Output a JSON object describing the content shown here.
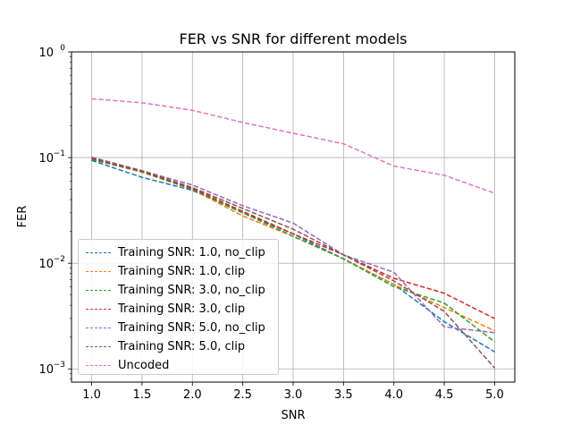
{
  "chart_data": {
    "type": "line",
    "title": "FER vs SNR for different models",
    "xlabel": "SNR",
    "ylabel": "FER",
    "yscale": "log",
    "xlim": [
      0.8,
      5.2
    ],
    "ylim": [
      0.00075,
      1
    ],
    "grid": true,
    "legend_position": "lower-left",
    "x_ticks": [
      "1.0",
      "1.5",
      "2.0",
      "2.5",
      "3.0",
      "3.5",
      "4.0",
      "4.5",
      "5.0"
    ],
    "y_ticks": [
      {
        "value": 0.001,
        "base": "10",
        "exp": "−3"
      },
      {
        "value": 0.01,
        "base": "10",
        "exp": "−2"
      },
      {
        "value": 0.1,
        "base": "10",
        "exp": "−1"
      },
      {
        "value": 1,
        "base": "10",
        "exp": "0"
      }
    ],
    "x": [
      1.0,
      1.5,
      2.0,
      2.5,
      3.0,
      3.5,
      4.0,
      4.5,
      5.0
    ],
    "series": [
      {
        "name": "Training SNR: 1.0, no_clip",
        "color": "#1f77b4",
        "values": [
          0.094,
          0.065,
          0.049,
          0.03,
          0.019,
          0.011,
          0.0063,
          0.0028,
          0.00145
        ]
      },
      {
        "name": "Training SNR: 1.0, clip",
        "color": "#ff7f0e",
        "values": [
          0.097,
          0.073,
          0.05,
          0.028,
          0.018,
          0.011,
          0.0063,
          0.0038,
          0.0023
        ]
      },
      {
        "name": "Training SNR: 3.0, no_clip",
        "color": "#2ca02c",
        "values": [
          0.096,
          0.073,
          0.05,
          0.03,
          0.018,
          0.011,
          0.006,
          0.0042,
          0.0018
        ]
      },
      {
        "name": "Training SNR: 3.0, clip",
        "color": "#d62728",
        "values": [
          0.098,
          0.074,
          0.051,
          0.031,
          0.019,
          0.012,
          0.0072,
          0.0052,
          0.003
        ]
      },
      {
        "name": "Training SNR: 5.0, no_clip",
        "color": "#9467bd",
        "values": [
          0.101,
          0.075,
          0.055,
          0.035,
          0.024,
          0.012,
          0.0082,
          0.0025,
          0.0022
        ]
      },
      {
        "name": "Training SNR: 5.0, clip",
        "color": "#8c564b",
        "values": [
          0.099,
          0.075,
          0.052,
          0.033,
          0.021,
          0.012,
          0.0068,
          0.0035,
          0.00102
        ]
      },
      {
        "name": "Uncoded",
        "color": "#e377c2",
        "values": [
          0.36,
          0.33,
          0.28,
          0.215,
          0.17,
          0.135,
          0.083,
          0.068,
          0.046
        ]
      }
    ]
  }
}
